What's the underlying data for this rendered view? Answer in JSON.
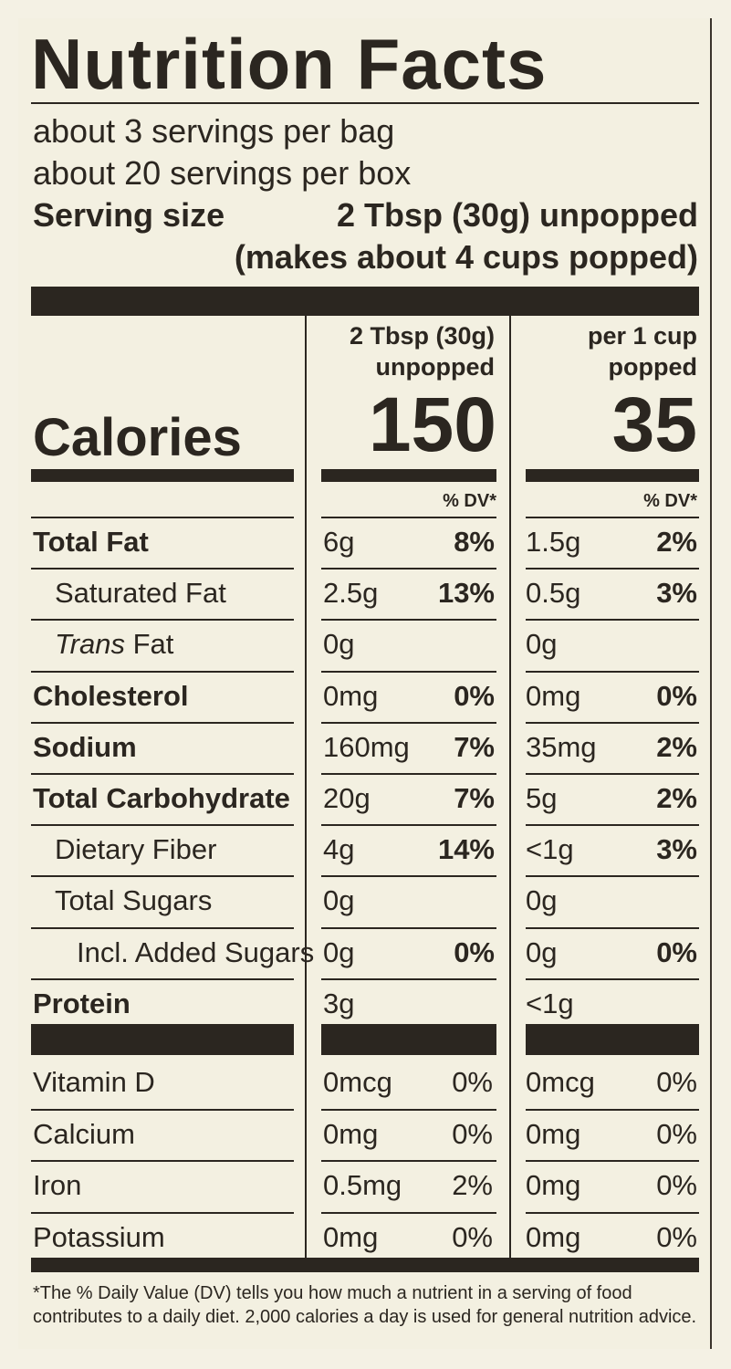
{
  "title": "Nutrition Facts",
  "servings": [
    "about 3 servings per bag",
    "about 20 servings per box"
  ],
  "serving_size": {
    "label": "Serving size",
    "value_line1": "2 Tbsp (30g) unpopped",
    "value_line2": "(makes about 4 cups popped)"
  },
  "columns": [
    {
      "head1": "2 Tbsp (30g)",
      "head2": "unpopped",
      "calories": "150"
    },
    {
      "head1": "per 1 cup",
      "head2": "popped",
      "calories": "35"
    }
  ],
  "calories_label": "Calories",
  "dv_header": "% DV*",
  "nutrients": [
    {
      "name": "Total Fat",
      "bold": true,
      "indent": 0,
      "c1_amt": "6g",
      "c1_dv": "8%",
      "c2_amt": "1.5g",
      "c2_dv": "2%"
    },
    {
      "name": "Saturated Fat",
      "bold": false,
      "indent": 1,
      "c1_amt": "2.5g",
      "c1_dv": "13%",
      "c2_amt": "0.5g",
      "c2_dv": "3%"
    },
    {
      "name_italic": "Trans",
      "name": " Fat",
      "bold": false,
      "indent": 1,
      "c1_amt": "0g",
      "c1_dv": "",
      "c2_amt": "0g",
      "c2_dv": ""
    },
    {
      "name": "Cholesterol",
      "bold": true,
      "indent": 0,
      "c1_amt": "0mg",
      "c1_dv": "0%",
      "c2_amt": "0mg",
      "c2_dv": "0%"
    },
    {
      "name": "Sodium",
      "bold": true,
      "indent": 0,
      "c1_amt": "160mg",
      "c1_dv": "7%",
      "c2_amt": "35mg",
      "c2_dv": "2%"
    },
    {
      "name": "Total Carbohydrate",
      "bold": true,
      "indent": 0,
      "c1_amt": "20g",
      "c1_dv": "7%",
      "c2_amt": "5g",
      "c2_dv": "2%"
    },
    {
      "name": "Dietary Fiber",
      "bold": false,
      "indent": 1,
      "c1_amt": "4g",
      "c1_dv": "14%",
      "c2_amt": "<1g",
      "c2_dv": "3%"
    },
    {
      "name": "Total Sugars",
      "bold": false,
      "indent": 1,
      "c1_amt": "0g",
      "c1_dv": "",
      "c2_amt": "0g",
      "c2_dv": ""
    },
    {
      "name": "Incl. Added Sugars",
      "bold": false,
      "indent": 2,
      "c1_amt": "0g",
      "c1_dv": "0%",
      "c2_amt": "0g",
      "c2_dv": "0%"
    },
    {
      "name": "Protein",
      "bold": true,
      "indent": 0,
      "c1_amt": "3g",
      "c1_dv": "",
      "c2_amt": "<1g",
      "c2_dv": ""
    }
  ],
  "vitamins": [
    {
      "name": "Vitamin D",
      "c1_amt": "0mcg",
      "c1_dv": "0%",
      "c2_amt": "0mcg",
      "c2_dv": "0%"
    },
    {
      "name": "Calcium",
      "c1_amt": "0mg",
      "c1_dv": "0%",
      "c2_amt": "0mg",
      "c2_dv": "0%"
    },
    {
      "name": "Iron",
      "c1_amt": "0.5mg",
      "c1_dv": "2%",
      "c2_amt": "0mg",
      "c2_dv": "0%"
    },
    {
      "name": "Potassium",
      "c1_amt": "0mg",
      "c1_dv": "0%",
      "c2_amt": "0mg",
      "c2_dv": "0%"
    }
  ],
  "footnote": "*The % Daily Value (DV) tells you how much a nutrient in a serving of food contributes to a daily diet. 2,000 calories a day is used for general nutrition advice."
}
